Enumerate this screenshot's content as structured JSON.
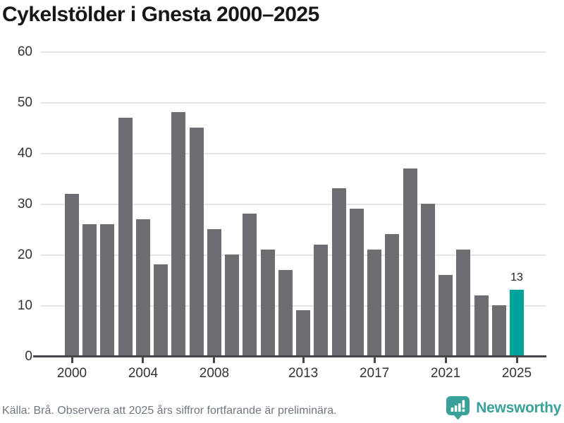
{
  "title": "Cykelstölder i Gnesta 2000–2025",
  "footer": {
    "caption": "Källa: Brå. Observera att 2025 års siffror fortfarande är preliminära.",
    "brand": "Newsworthy"
  },
  "colors": {
    "bar": "#6d6d72",
    "highlight": "#00a39c",
    "brand_teal": "#38a199",
    "grid": "#e5e5e5",
    "axis": "#47474b"
  },
  "chart_data": {
    "type": "bar",
    "title": "Cykelstölder i Gnesta 2000–2025",
    "categories": [
      "2000",
      "2001",
      "2002",
      "2003",
      "2004",
      "2005",
      "2006",
      "2007",
      "2008",
      "2009",
      "2010",
      "2011",
      "2012",
      "2013",
      "2014",
      "2015",
      "2016",
      "2017",
      "2018",
      "2019",
      "2020",
      "2021",
      "2022",
      "2023",
      "2024",
      "2025"
    ],
    "values": [
      32,
      26,
      26,
      47,
      27,
      18,
      48,
      45,
      25,
      20,
      28,
      21,
      17,
      9,
      22,
      33,
      29,
      21,
      24,
      37,
      30,
      16,
      21,
      12,
      10,
      13
    ],
    "highlight_category": "2025",
    "highlight_value_label": "13",
    "xlabel": "",
    "ylabel": "",
    "ylim": [
      0,
      60
    ],
    "yticks": [
      0,
      10,
      20,
      30,
      40,
      50,
      60
    ],
    "xtick_labels": [
      "2000",
      "2004",
      "2008",
      "2013",
      "2017",
      "2021",
      "2025"
    ],
    "grid": "horizontal",
    "legend": "none"
  }
}
